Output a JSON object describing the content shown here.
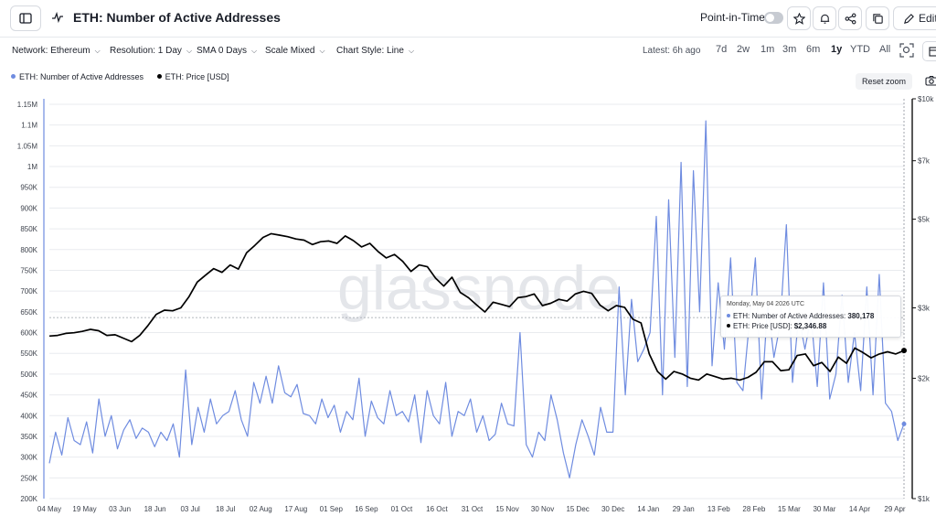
{
  "header": {
    "title": "ETH: Number of Active Addresses",
    "point_in_time_label": "Point-in-Time",
    "edit_label": "Edit"
  },
  "toolbar": {
    "network": "Network: Ethereum",
    "resolution": "Resolution: 1 Day",
    "sma": "SMA 0 Days",
    "scale": "Scale Mixed",
    "chart_style": "Chart Style: Line",
    "latest": "Latest: 6h ago",
    "periods": [
      "7d",
      "2w",
      "1m",
      "3m",
      "6m",
      "1y",
      "YTD",
      "All"
    ],
    "active_period": "1y"
  },
  "controls": {
    "reset_zoom": "Reset zoom"
  },
  "watermark": "glassnode",
  "tooltip": {
    "date": "Monday, May 04 2026 UTC",
    "addresses_label": "ETH: Number of Active Addresses:",
    "addresses_value": "380,178",
    "price_label": "ETH: Price [USD]:",
    "price_value": "$2,346.88"
  },
  "colors": {
    "addresses": "#6f8ce0",
    "price": "#000000",
    "grid": "#e9ebef"
  },
  "chart_data": {
    "type": "line",
    "x_labels": [
      "04 May",
      "19 May",
      "03 Jun",
      "18 Jun",
      "03 Jul",
      "18 Jul",
      "02 Aug",
      "17 Aug",
      "01 Sep",
      "16 Sep",
      "01 Oct",
      "16 Oct",
      "31 Oct",
      "15 Nov",
      "30 Nov",
      "15 Dec",
      "30 Dec",
      "14 Jan",
      "29 Jan",
      "13 Feb",
      "28 Feb",
      "15 Mar",
      "30 Mar",
      "14 Apr",
      "29 Apr"
    ],
    "y_left_ticks": [
      "200K",
      "250K",
      "300K",
      "350K",
      "400K",
      "450K",
      "500K",
      "550K",
      "600K",
      "650K",
      "700K",
      "750K",
      "800K",
      "850K",
      "900K",
      "950K",
      "1M",
      "1.05M",
      "1.1M",
      "1.15M"
    ],
    "y_left_range": [
      200000,
      1150000
    ],
    "y_right_ticks": [
      "$1k",
      "$2k",
      "$3k",
      "$5k",
      "$7k",
      "$10k"
    ],
    "y_right_tick_values": [
      1000,
      2000,
      3000,
      5000,
      7000,
      10000
    ],
    "y_right_scale": "log",
    "y_right_range": [
      1000,
      10000
    ],
    "grid": true,
    "series": [
      {
        "name": "ETH: Number of Active Addresses",
        "axis": "left",
        "values": [
          285000,
          360000,
          305000,
          395000,
          340000,
          330000,
          385000,
          310000,
          440000,
          350000,
          400000,
          320000,
          365000,
          390000,
          345000,
          370000,
          360000,
          325000,
          360000,
          340000,
          380000,
          300000,
          510000,
          330000,
          420000,
          360000,
          440000,
          380000,
          400000,
          410000,
          460000,
          390000,
          350000,
          480000,
          430000,
          495000,
          430000,
          520000,
          455000,
          445000,
          475000,
          405000,
          400000,
          380000,
          440000,
          395000,
          425000,
          360000,
          410000,
          390000,
          490000,
          350000,
          435000,
          395000,
          380000,
          460000,
          400000,
          410000,
          385000,
          450000,
          335000,
          460000,
          400000,
          380000,
          480000,
          350000,
          410000,
          400000,
          440000,
          360000,
          400000,
          340000,
          355000,
          430000,
          380000,
          375000,
          600000,
          330000,
          300000,
          360000,
          340000,
          450000,
          390000,
          310000,
          250000,
          330000,
          390000,
          350000,
          305000,
          420000,
          360000,
          360000,
          710000,
          450000,
          680000,
          530000,
          560000,
          600000,
          880000,
          450000,
          920000,
          540000,
          1010000,
          470000,
          990000,
          650000,
          1110000,
          520000,
          720000,
          560000,
          780000,
          480000,
          460000,
          620000,
          780000,
          440000,
          670000,
          540000,
          620000,
          860000,
          480000,
          640000,
          560000,
          640000,
          470000,
          720000,
          440000,
          500000,
          690000,
          480000,
          600000,
          460000,
          710000,
          450000,
          740000,
          430000,
          410000,
          340000,
          380000
        ],
        "tooltip_last_value": 380178
      },
      {
        "name": "ETH: Price [USD]",
        "axis": "right",
        "values": [
          2550,
          2560,
          2590,
          2600,
          2620,
          2650,
          2630,
          2560,
          2570,
          2520,
          2470,
          2560,
          2710,
          2890,
          2960,
          2950,
          3000,
          3200,
          3480,
          3620,
          3760,
          3680,
          3840,
          3750,
          4120,
          4300,
          4500,
          4600,
          4560,
          4520,
          4460,
          4430,
          4320,
          4390,
          4410,
          4350,
          4540,
          4420,
          4260,
          4350,
          4150,
          4000,
          4080,
          3920,
          3700,
          3840,
          3800,
          3560,
          3400,
          3580,
          3280,
          3180,
          3050,
          2930,
          3100,
          3060,
          3020,
          3180,
          3200,
          3250,
          3040,
          3080,
          3150,
          3120,
          3250,
          3300,
          3260,
          3050,
          2950,
          3040,
          3010,
          2810,
          2750,
          2300,
          2080,
          1990,
          2080,
          2050,
          2000,
          1980,
          2050,
          2020,
          1990,
          2000,
          1980,
          2010,
          2070,
          2200,
          2200,
          2090,
          2100,
          2280,
          2300,
          2150,
          2190,
          2080,
          2260,
          2180,
          2380,
          2320,
          2250,
          2300,
          2330,
          2300,
          2346.88
        ],
        "tooltip_last_value": 2346.88
      }
    ],
    "title": "",
    "xlabel": "",
    "ylabel": ""
  }
}
